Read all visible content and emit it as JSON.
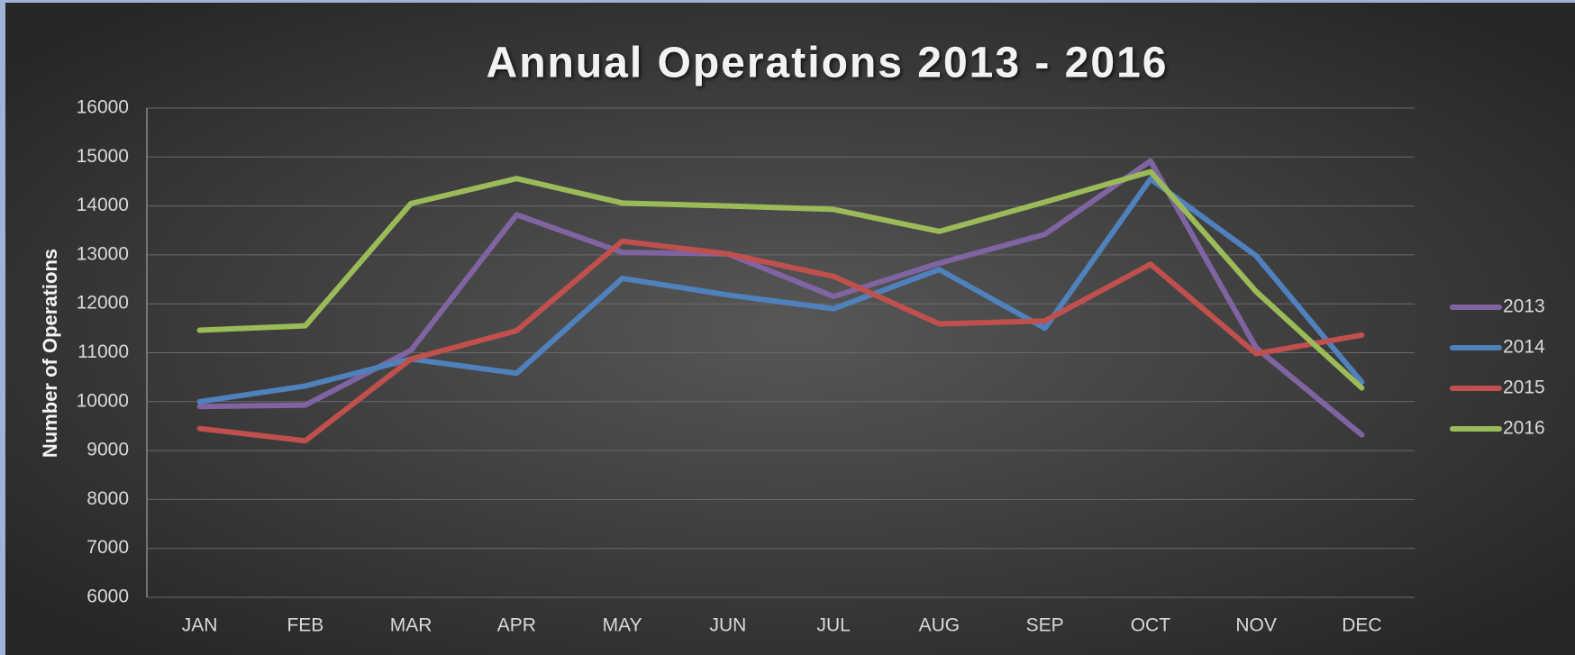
{
  "chart_data": {
    "type": "line",
    "title": "Annual Operations 2013 - 2016",
    "ylabel": "Number of  Operations",
    "categories": [
      "JAN",
      "FEB",
      "MAR",
      "APR",
      "MAY",
      "JUN",
      "JUL",
      "AUG",
      "SEP",
      "OCT",
      "NOV",
      "DEC"
    ],
    "series": [
      {
        "name": "2013",
        "color": "#8064a2",
        "values": [
          9900,
          9930,
          11050,
          13820,
          13050,
          13020,
          12150,
          12830,
          13420,
          14920,
          11100,
          9320
        ]
      },
      {
        "name": "2014",
        "color": "#4f81bd",
        "values": [
          10000,
          10320,
          10870,
          10580,
          12520,
          12180,
          11900,
          12700,
          11500,
          14550,
          12980,
          10400
        ]
      },
      {
        "name": "2015",
        "color": "#c0504d",
        "values": [
          9450,
          9200,
          10870,
          11450,
          13280,
          13020,
          12560,
          11590,
          11650,
          12810,
          10980,
          11360
        ]
      },
      {
        "name": "2016",
        "color": "#9bbb59",
        "values": [
          11460,
          11550,
          14050,
          14560,
          14060,
          14000,
          13930,
          13480,
          14080,
          14700,
          12250,
          10280
        ]
      }
    ],
    "ylim": [
      6000,
      16000
    ],
    "yticks": [
      6000,
      7000,
      8000,
      9000,
      10000,
      11000,
      12000,
      13000,
      14000,
      15000,
      16000
    ],
    "grid": true,
    "legend": "right"
  }
}
